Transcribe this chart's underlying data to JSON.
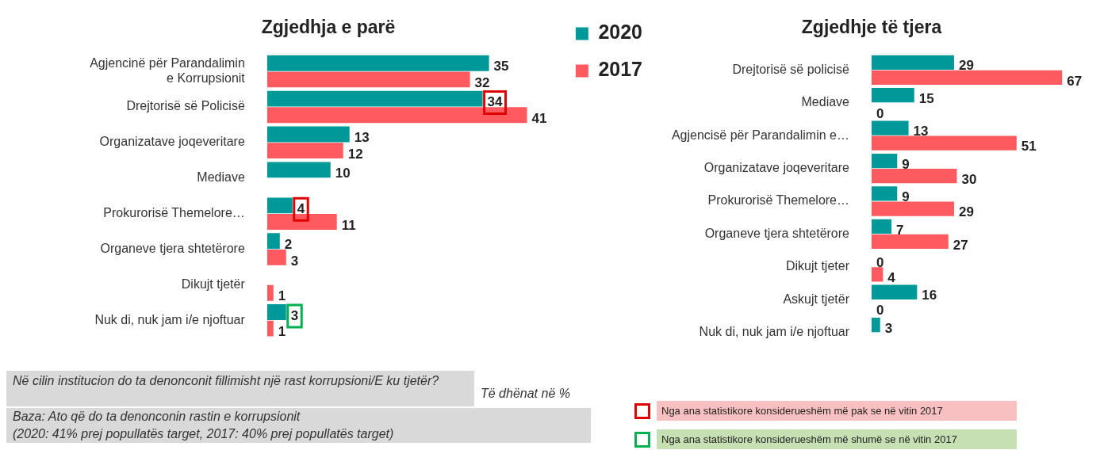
{
  "chart_data": [
    {
      "type": "bar",
      "title": "Zgjedhja e parë",
      "orientation": "horizontal",
      "data_labels": true,
      "tick_labels": "y",
      "legend": "top right",
      "categories": [
        "Agjencinë për Parandalimin e Korrupsionit",
        "Drejtorisë së Policisë",
        "Organizatave joqeveritare",
        "Mediave",
        "Prokurorisë Themelore…",
        "Organeve tjera shtetërore",
        "Dikujt tjetër",
        "Nuk di, nuk jam i/e njoftuar"
      ],
      "series": [
        {
          "name": "2020",
          "color": "#009999",
          "values": [
            35,
            34,
            13,
            10,
            4,
            2,
            null,
            3
          ]
        },
        {
          "name": "2017",
          "color": "#ff5a5f",
          "values": [
            32,
            41,
            12,
            null,
            11,
            3,
            1,
            1
          ]
        }
      ],
      "annotations": [
        "Në cilin institucion do ta denonconit fillimisht një rast korrupsioni/E ku tjetër?",
        "Të dhënat në %",
        "Baza: Ato që do ta denonconin rastin e korrupsionit",
        "(2020: 41% prej popullatës target, 2017: 40% prej popullatës target)",
        "Nga ana statistikore konsiderueshëm më pak se në vitin 2017",
        "Nga ana statistikore konsiderueshëm më shumë se në vitin 2017"
      ]
    },
    {
      "type": "bar",
      "title": "Zgjedhje të tjera",
      "orientation": "horizontal",
      "data_labels": true,
      "tick_labels": "y",
      "categories": [
        "Drejtorisë së policisë",
        "Mediave",
        "Agjencisë për Parandalimin e…",
        "Organizatave joqeveritare",
        "Prokurorisë Themelore…",
        "Organeve tjera shtetërore",
        "Dikujt tjeter",
        "Askujt tjetër",
        "Nuk di, nuk jam i/e njoftuar"
      ],
      "series": [
        {
          "color": "#009999",
          "values": [
            29,
            15,
            13,
            9,
            9,
            7,
            0,
            16,
            3
          ]
        },
        {
          "color": "#ff5a5f",
          "values": [
            67,
            0,
            51,
            30,
            29,
            27,
            4,
            0,
            null
          ]
        }
      ]
    }
  ]
}
